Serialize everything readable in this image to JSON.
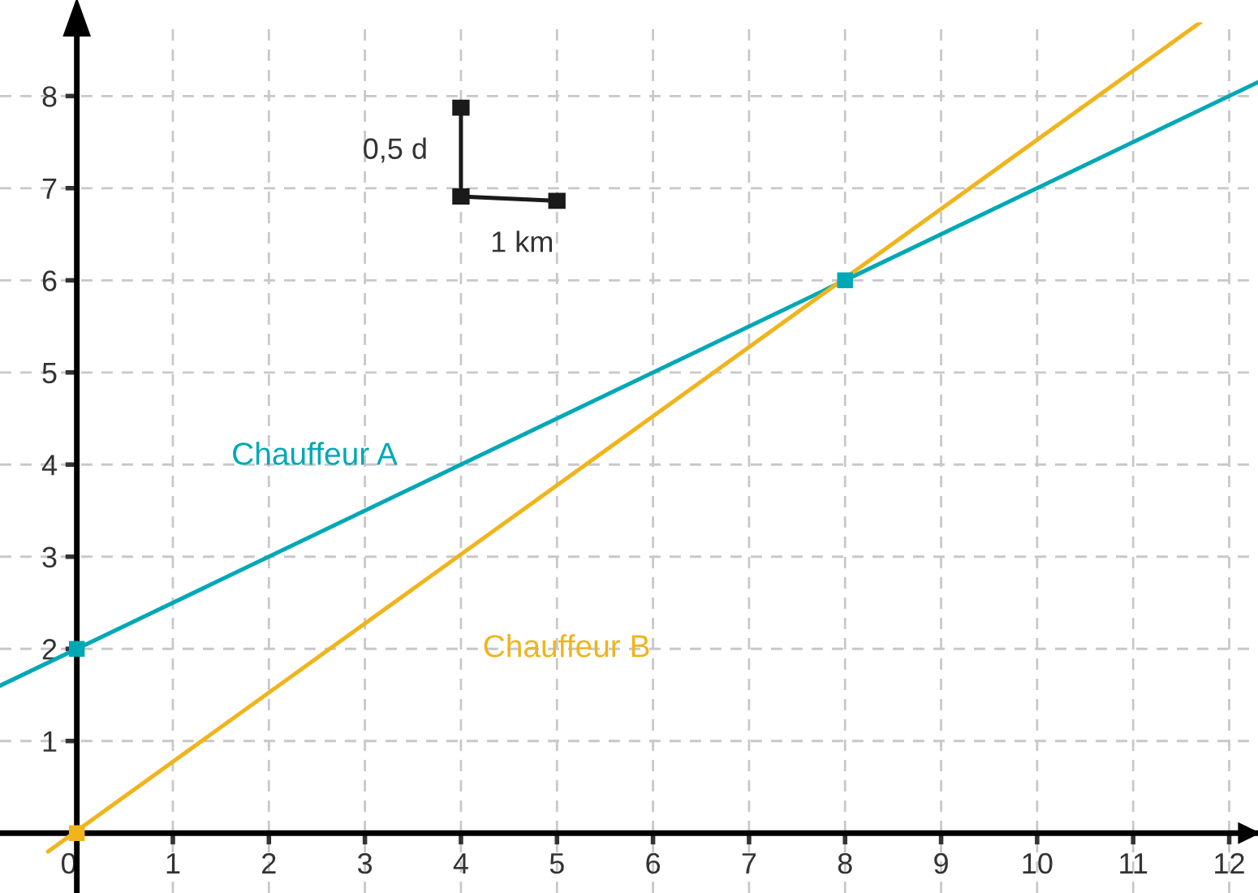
{
  "chart_data": {
    "type": "line",
    "xlim": [
      -0.8,
      12.3
    ],
    "ylim": [
      -0.65,
      8.8
    ],
    "xticks": [
      0,
      1,
      2,
      3,
      4,
      5,
      6,
      7,
      8,
      9,
      10,
      11,
      12
    ],
    "yticks": [
      1,
      2,
      3,
      4,
      5,
      6,
      7,
      8
    ],
    "grid": true,
    "legend": false,
    "series": [
      {
        "name": "Chauffeur A",
        "color": "#00a8b5",
        "x": [
          -0.8,
          12.3
        ],
        "values": [
          1.6,
          8.15
        ],
        "marker": "none"
      },
      {
        "name": "Chauffeur B",
        "color": "#f0b41c",
        "x": [
          -0.3,
          11.7
        ],
        "values": [
          -0.2,
          8.8
        ],
        "marker": "none"
      },
      {
        "type": "scatter",
        "color": "#00a8b5",
        "x": [
          0,
          8
        ],
        "values": [
          2,
          6
        ],
        "marker": "square"
      },
      {
        "type": "scatter",
        "color": "#f0b41c",
        "x": [
          0
        ],
        "values": [
          0
        ],
        "marker": "square"
      }
    ],
    "annotations": [
      "0,5 d",
      "1 km"
    ]
  }
}
